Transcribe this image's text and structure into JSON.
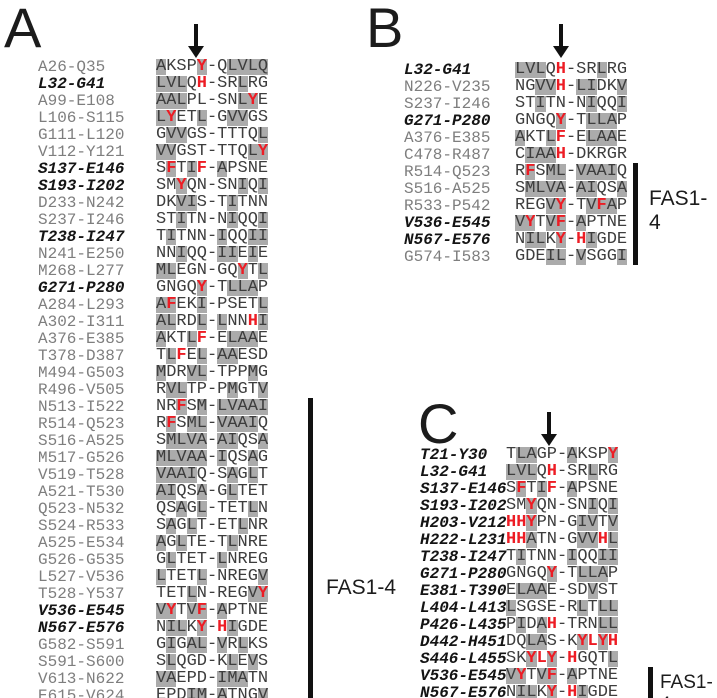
{
  "figure_type": "peptide-sequence-alignment",
  "fas_domain_label": "FAS1-4",
  "colors": {
    "highlight_box": "#ababab",
    "aromatic_red": "#ed1c24",
    "sequence_text": "#3d3d3d",
    "label_gray": "#7e7e7e",
    "label_black": "#141414"
  },
  "panels": [
    {
      "letter": "A",
      "arrow_column": 5,
      "fas_rows": [
        21,
        38
      ],
      "rows": [
        {
          "label": "A26-Q35",
          "bold": false,
          "seq": "AKSPY-QLVLQ",
          "gray": "10001001111",
          "red": "00001000000"
        },
        {
          "label": "L32-G41",
          "bold": true,
          "seq": "LVLQH-SRLRG",
          "gray": "11100000100",
          "red": "00001000000"
        },
        {
          "label": "A99-E108",
          "bold": false,
          "seq": "AALPL-SNLYE",
          "gray": "11100000110",
          "red": "00000000010"
        },
        {
          "label": "L106-S115",
          "bold": false,
          "seq": "LYETL-GVVGS",
          "gray": "11001001100",
          "red": "01000000000"
        },
        {
          "label": "G111-L120",
          "bold": false,
          "seq": "GVVGS-TTTQL",
          "gray": "01100000001",
          "red": "00000000000"
        },
        {
          "label": "V112-Y121",
          "bold": false,
          "seq": "VVGST-TTQLY",
          "gray": "11000000011",
          "red": "00000000001"
        },
        {
          "label": "S137-E146",
          "bold": true,
          "seq": "SFTIF-APSNE",
          "gray": "01010010000",
          "red": "01001000000"
        },
        {
          "label": "S193-I202",
          "bold": true,
          "seq": "SMYQN-SNIQI",
          "gray": "00100000101",
          "red": "00100000000"
        },
        {
          "label": "D233-N242",
          "bold": false,
          "seq": "DKVIS-TITNN",
          "gray": "00110001000",
          "red": "00000000000"
        },
        {
          "label": "S237-I246",
          "bold": false,
          "seq": "STITN-NIQQI",
          "gray": "00100001001",
          "red": "00000000000"
        },
        {
          "label": "T238-I247",
          "bold": true,
          "seq": "TITNN-IQQII",
          "gray": "01000010011",
          "red": "00000000000"
        },
        {
          "label": "N241-E250",
          "bold": false,
          "seq": "NNIQQ-IIEIE",
          "gray": "00100011010",
          "red": "00000000000"
        },
        {
          "label": "M268-L277",
          "bold": false,
          "seq": "MLEGN-GQYTL",
          "gray": "11000000101",
          "red": "00000000100"
        },
        {
          "label": "G271-P280",
          "bold": true,
          "seq": "GNGQY-TLLAP",
          "gray": "00001001110",
          "red": "00001000000"
        },
        {
          "label": "A284-L293",
          "bold": false,
          "seq": "AFEKI-PSETL",
          "gray": "11001000001",
          "red": "01000000000"
        },
        {
          "label": "A302-I311",
          "bold": false,
          "seq": "ALRDL-LNNHI",
          "gray": "11001010001",
          "red": "00000000010"
        },
        {
          "label": "A376-E385",
          "bold": false,
          "seq": "AKTLF-ELAAE",
          "gray": "10010001110",
          "red": "00001000000"
        },
        {
          "label": "T378-D387",
          "bold": false,
          "seq": "TLFEL-AAESD",
          "gray": "01001011000",
          "red": "00100000000"
        },
        {
          "label": "M494-G503",
          "bold": false,
          "seq": "MDRVL-TPPMG",
          "gray": "10011000010",
          "red": "00000000000"
        },
        {
          "label": "R496-V505",
          "bold": false,
          "seq": "RVLTP-PMGTV",
          "gray": "01100001001",
          "red": "00000000000"
        },
        {
          "label": "N513-I522",
          "bold": false,
          "seq": "NRFSM-LVAAI",
          "gray": "00101011111",
          "red": "00100000000"
        },
        {
          "label": "R514-Q523",
          "bold": false,
          "seq": "RFSML-VAAIQ",
          "gray": "01011011110",
          "red": "01000000000"
        },
        {
          "label": "S516-A525",
          "bold": false,
          "seq": "SMLVA-AIQSA",
          "gray": "01111011001",
          "red": "00000000000"
        },
        {
          "label": "M517-G526",
          "bold": false,
          "seq": "MLVAA-IQSAG",
          "gray": "11111010010",
          "red": "00000000000"
        },
        {
          "label": "V519-T528",
          "bold": false,
          "seq": "VAAIQ-SAGLT",
          "gray": "11110001010",
          "red": "00000000000"
        },
        {
          "label": "A521-T530",
          "bold": false,
          "seq": "AIQSA-GLTET",
          "gray": "11001001000",
          "red": "00000000000"
        },
        {
          "label": "Q523-N532",
          "bold": false,
          "seq": "QSAGL-TETLN",
          "gray": "00101000010",
          "red": "00000000000"
        },
        {
          "label": "S524-R533",
          "bold": false,
          "seq": "SAGLT-ETLNR",
          "gray": "01010000100",
          "red": "00000000000"
        },
        {
          "label": "A525-E534",
          "bold": false,
          "seq": "AGLTE-TLNRE",
          "gray": "10100001000",
          "red": "00000000000"
        },
        {
          "label": "G526-G535",
          "bold": false,
          "seq": "GLTET-LNREG",
          "gray": "01000010000",
          "red": "00000000000"
        },
        {
          "label": "L527-V536",
          "bold": false,
          "seq": "LTETL-NREGV",
          "gray": "10001000001",
          "red": "00000000000"
        },
        {
          "label": "T528-Y537",
          "bold": false,
          "seq": "TETLN-REGVY",
          "gray": "00010000011",
          "red": "00000000001"
        },
        {
          "label": "V536-E545",
          "bold": true,
          "seq": "VYTVF-APTNE",
          "gray": "11011010000",
          "red": "01001000000"
        },
        {
          "label": "N567-E576",
          "bold": true,
          "seq": "NILKY-HIGDE",
          "gray": "01101001000",
          "red": "00001010000"
        },
        {
          "label": "G582-S591",
          "bold": false,
          "seq": "GIGAL-VRLKS",
          "gray": "01011010100",
          "red": "00000000000"
        },
        {
          "label": "S591-S600",
          "bold": false,
          "seq": "SLQGD-KLEVS",
          "gray": "01000001010",
          "red": "00000000000"
        },
        {
          "label": "V613-N622",
          "bold": false,
          "seq": "VAEPD-IMATN",
          "gray": "11000011100",
          "red": "00000000000"
        },
        {
          "label": "E615-V624",
          "bold": false,
          "seq": "EPDIM-ATNGV",
          "gray": "00011010001",
          "red": "00000000000"
        }
      ]
    },
    {
      "letter": "B",
      "arrow_column": 5,
      "fas_rows": [
        7,
        12
      ],
      "rows": [
        {
          "label": "L32-G41",
          "bold": true,
          "seq": "LVLQH-SRLRG",
          "gray": "11100000100",
          "red": "00001000000"
        },
        {
          "label": "N226-V235",
          "bold": false,
          "seq": "NGVVH-LIDKV",
          "gray": "00110011001",
          "red": "00001000000"
        },
        {
          "label": "S237-I246",
          "bold": false,
          "seq": "STITN-NIQQI",
          "gray": "00100001001",
          "red": "00000000000"
        },
        {
          "label": "G271-P280",
          "bold": true,
          "seq": "GNGQY-TLLAP",
          "gray": "00001001110",
          "red": "00001000000"
        },
        {
          "label": "A376-E385",
          "bold": false,
          "seq": "AKTLF-ELAAE",
          "gray": "10010001110",
          "red": "00001000000"
        },
        {
          "label": "C478-R487",
          "bold": false,
          "seq": "CIAAH-DKRGR",
          "gray": "01110000000",
          "red": "00001000000"
        },
        {
          "label": "R514-Q523",
          "bold": false,
          "seq": "RFSML-VAAIQ",
          "gray": "01011011110",
          "red": "01000000000"
        },
        {
          "label": "S516-A525",
          "bold": false,
          "seq": "SMLVA-AIQSA",
          "gray": "01111011001",
          "red": "00000000000"
        },
        {
          "label": "R533-P542",
          "bold": false,
          "seq": "REGVY-TVFAP",
          "gray": "00011001110",
          "red": "00001000100"
        },
        {
          "label": "V536-E545",
          "bold": true,
          "seq": "VYTVF-APTNE",
          "gray": "11011010000",
          "red": "01001000000"
        },
        {
          "label": "N567-E576",
          "bold": true,
          "seq": "NILKY-HIGDE",
          "gray": "01101001000",
          "red": "00001010000"
        },
        {
          "label": "G574-I583",
          "bold": false,
          "seq": "GDEIL-VSGGI",
          "gray": "00011010001",
          "red": "00000000000"
        }
      ]
    },
    {
      "letter": "C",
      "arrow_column": 5,
      "fas_rows": [
        14,
        15
      ],
      "rows": [
        {
          "label": "T21-Y30",
          "bold": true,
          "seq": "TLAGP-AKSPY",
          "gray": "01100010001",
          "red": "00000000001"
        },
        {
          "label": "L32-G41",
          "bold": true,
          "seq": "LVLQH-SRLRG",
          "gray": "11100000100",
          "red": "00001000000"
        },
        {
          "label": "S137-E146",
          "bold": true,
          "seq": "SFTIF-APSNE",
          "gray": "01010010000",
          "red": "01001000000"
        },
        {
          "label": "S193-I202",
          "bold": true,
          "seq": "SMYQN-SNIQI",
          "gray": "00100000101",
          "red": "00100000000"
        },
        {
          "label": "H203-V212",
          "bold": true,
          "seq": "HHYPN-GIVTV",
          "gray": "00100001101",
          "red": "11100000000"
        },
        {
          "label": "H222-L231",
          "bold": true,
          "seq": "HHATN-GVVHL",
          "gray": "00100001101",
          "red": "11000000010"
        },
        {
          "label": "T238-I247",
          "bold": true,
          "seq": "TITNN-IQQII",
          "gray": "01000010011",
          "red": "00000000000"
        },
        {
          "label": "G271-P280",
          "bold": true,
          "seq": "GNGQY-TLLAP",
          "gray": "00001001110",
          "red": "00001000000"
        },
        {
          "label": "E381-T390",
          "bold": true,
          "seq": "ELAAE-SDVST",
          "gray": "01110000100",
          "red": "00000000000"
        },
        {
          "label": "L404-L413",
          "bold": true,
          "seq": "LSGSE-RLTLL",
          "gray": "10000001011",
          "red": "00000000000"
        },
        {
          "label": "P426-L435",
          "bold": true,
          "seq": "PIDAH-TRNLL",
          "gray": "01010000011",
          "red": "00001000000"
        },
        {
          "label": "D442-H451",
          "bold": true,
          "seq": "DQLAS-KYLYH",
          "gray": "00110001010",
          "red": "00000001111"
        },
        {
          "label": "S446-L455",
          "bold": true,
          "seq": "SKYLY-HGQTL",
          "gray": "00101000001",
          "red": "00111010000"
        },
        {
          "label": "V536-E545",
          "bold": true,
          "seq": "VYTVF-APTNE",
          "gray": "11011010000",
          "red": "01001000000"
        },
        {
          "label": "N567-E576",
          "bold": true,
          "seq": "NILKY-HIGDE",
          "gray": "01101001000",
          "red": "00001010000"
        }
      ]
    }
  ]
}
